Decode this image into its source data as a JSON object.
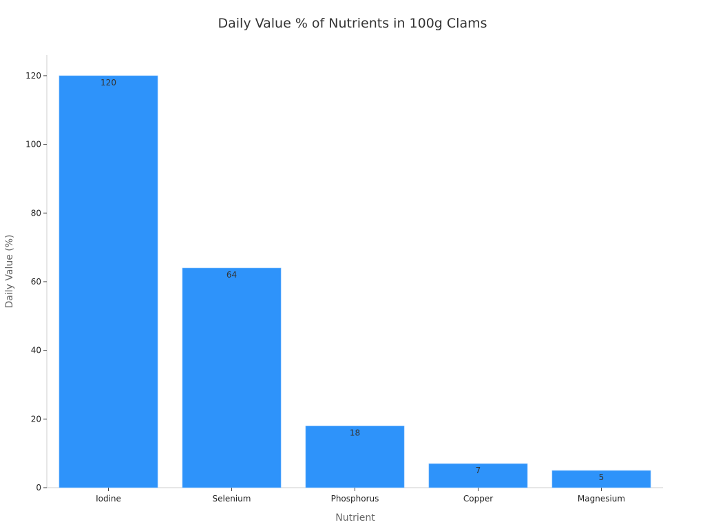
{
  "chart_data": {
    "type": "bar",
    "title": "Daily Value % of Nutrients in 100g Clams",
    "xlabel": "Nutrient",
    "ylabel": "Daily Value (%)",
    "categories": [
      "Iodine",
      "Selenium",
      "Phosphorus",
      "Copper",
      "Magnesium"
    ],
    "values": [
      120,
      64,
      18,
      7,
      5
    ],
    "ylim": [
      0,
      126
    ],
    "yticks": [
      0,
      20,
      40,
      60,
      80,
      100,
      120
    ],
    "grid": false,
    "bar_color": "#2e93fa"
  }
}
